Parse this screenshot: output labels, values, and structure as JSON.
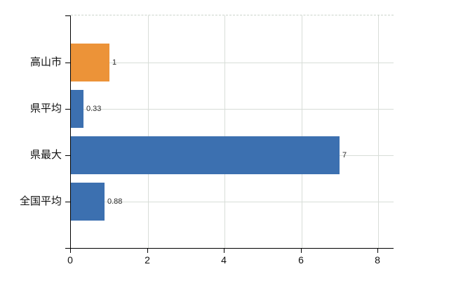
{
  "chart_data": {
    "type": "bar",
    "orientation": "horizontal",
    "title": "",
    "categories": [
      "高山市",
      "県平均",
      "県最大",
      "全国平均"
    ],
    "values": [
      1,
      0.33,
      7,
      0.88
    ],
    "value_labels": [
      "1",
      "0.33",
      "7",
      "0.88"
    ],
    "bar_colors": [
      "#EC9338",
      "#3C70B0",
      "#3C70B0",
      "#3C70B0"
    ],
    "highlight_color": "#EC9338",
    "base_color": "#3C70B0",
    "x_tick_labels": [
      "0",
      "2",
      "4",
      "6",
      "8"
    ],
    "x_tick_values": [
      0,
      2,
      4,
      6,
      8
    ],
    "xlim": [
      0,
      8.4
    ],
    "grid": true,
    "gridline_color": "#d8ddd8",
    "top_border_color": "#cbd4cb",
    "axis_color": "#000000",
    "legend": false,
    "background_color": "#ffffff"
  }
}
